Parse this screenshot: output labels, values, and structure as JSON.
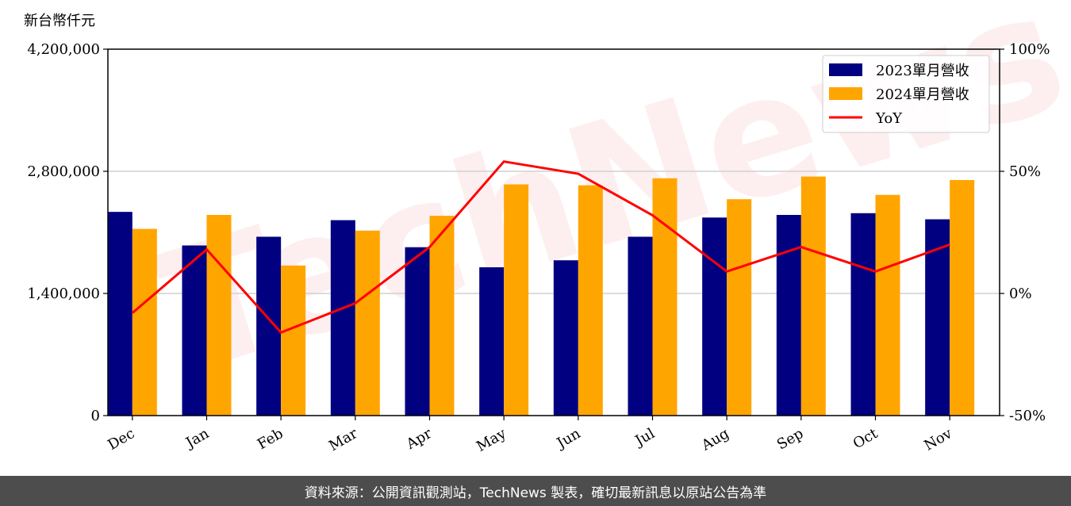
{
  "chart_data": {
    "type": "bar",
    "unit_label": "新台幣仟元",
    "categories": [
      "Dec",
      "Jan",
      "Feb",
      "Mar",
      "Apr",
      "May",
      "Jun",
      "Jul",
      "Aug",
      "Sep",
      "Oct",
      "Nov"
    ],
    "series": [
      {
        "name": "2023單月營收",
        "color": "#000080",
        "values": [
          2335000,
          1950000,
          2050000,
          2240000,
          1930000,
          1700000,
          1780000,
          2050000,
          2270000,
          2300000,
          2320000,
          2250000
        ]
      },
      {
        "name": "2024單月營收",
        "color": "#ffa500",
        "values": [
          2140000,
          2300000,
          1720000,
          2120000,
          2290000,
          2650000,
          2640000,
          2720000,
          2480000,
          2740000,
          2530000,
          2700000
        ]
      }
    ],
    "line_series": {
      "name": "YoY",
      "color": "#ff0000",
      "axis": "right",
      "values": [
        -8,
        18,
        -16,
        -4,
        19,
        54,
        49,
        32,
        9,
        19,
        9,
        20
      ]
    },
    "ylim": [
      0,
      4200000
    ],
    "yticks": [
      0,
      1400000,
      2800000,
      4200000
    ],
    "ytick_labels": [
      "0",
      "1,400,000",
      "2,800,000",
      "4,200,000"
    ],
    "y2lim": [
      -50,
      100
    ],
    "y2ticks": [
      -50,
      0,
      50,
      100
    ],
    "y2tick_labels": [
      "-50%",
      "0%",
      "50%",
      "100%"
    ],
    "grid": "horizontal",
    "legend_position": "top-right"
  },
  "watermark": "TechNews",
  "footer": {
    "text": "資料來源：公開資訊觀測站，TechNews 製表，確切最新訊息以原站公告為準"
  }
}
